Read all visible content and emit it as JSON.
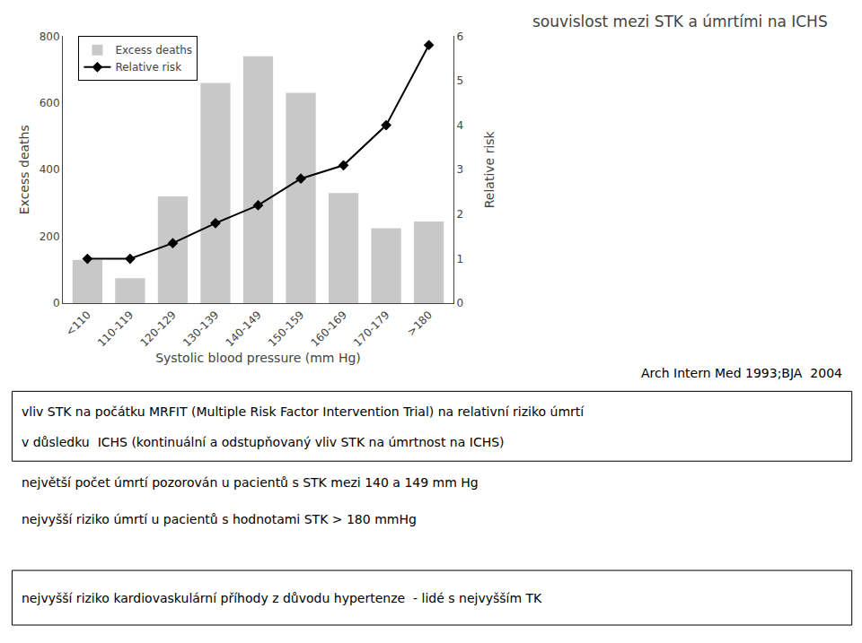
{
  "chart_data": {
    "type": "bar",
    "title": "souvislost mezi STK a úmrtími na ICHS",
    "x_label": "Systolic blood pressure (mm Hg)",
    "y_label": "Excess deaths",
    "y2_label": "Relative risk",
    "categories": [
      "<110",
      "110-119",
      "120-129",
      "130-139",
      "140-149",
      "150-159",
      "160-169",
      "170-179",
      ">180"
    ],
    "series": [
      {
        "name": "Excess deaths",
        "type": "bar",
        "color": "#c8c8c8",
        "values": [
          130,
          75,
          320,
          660,
          740,
          630,
          330,
          225,
          245
        ]
      },
      {
        "name": "Relative risk",
        "type": "line",
        "axis": "y2",
        "color": "#000000",
        "marker": "diamond",
        "values": [
          1.0,
          1.0,
          1.35,
          1.8,
          2.2,
          2.8,
          3.1,
          4.0,
          5.8
        ]
      }
    ],
    "ylim": [
      0,
      800
    ],
    "yticks": [
      0,
      200,
      400,
      600,
      800
    ],
    "y2lim": [
      0,
      6
    ],
    "y2ticks": [
      0,
      1,
      2,
      3,
      4,
      5,
      6
    ],
    "grid": false,
    "legend": "upper left",
    "annotations": [
      "Arch Intern Med 1993;BJA  2004",
      "vliv STK na počátku MRFIT (Multiple Risk Factor Intervention Trial) na relativní riziko úmrtí",
      "v důsledku  ICHS (kontinuální a odstupňovaný vliv STK na úmrtnost na ICHS)",
      "největší počet úmrtí pozorován u pacientů s STK mezi 140 a 149 mm Hg",
      "nejvyšší riziko úmrtí u pacientů s hodnotami STK > 180 mmHg",
      "nejvyšší riziko kardiovaskulární příhody z důvodu hypertenze  - lidé s nejvyšším TK"
    ]
  }
}
